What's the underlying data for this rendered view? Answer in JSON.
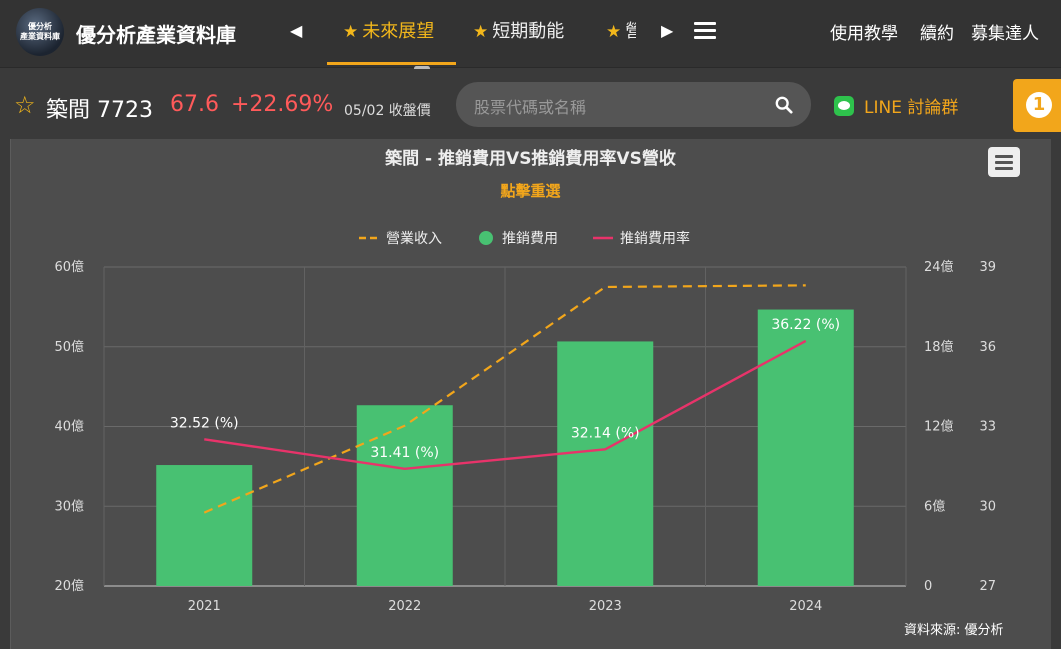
{
  "header": {
    "logo_text": "優分析\n產業資料庫",
    "brand": "優分析產業資料庫",
    "tabs": [
      {
        "label": "未來展望",
        "active": true
      },
      {
        "label": "短期動能",
        "active": false
      },
      {
        "label": "營運",
        "active": false
      }
    ],
    "right_links": [
      "使用教學",
      "續約",
      "募集達人"
    ]
  },
  "stock": {
    "name": "築間 7723",
    "price": "67.6",
    "change": "+22.69%",
    "date": "05/02 收盤價",
    "search_placeholder": "股票代碼或名稱",
    "line_label": "LINE 討論群",
    "notification_count": "1"
  },
  "colors": {
    "accent": "#f2a61b",
    "price_up": "#ff5a5a",
    "bar": "#48c172",
    "rate_line": "#e8336a",
    "revenue_line": "#f2a61b"
  },
  "chart_data": {
    "type": "bar",
    "title": "築間 - 推銷費用VS推銷費用率VS營收",
    "subtitle": "點擊重選",
    "categories": [
      "2021",
      "2022",
      "2023",
      "2024"
    ],
    "legend_position": "top-center",
    "grid": true,
    "series": [
      {
        "name": "營業收入",
        "type": "line",
        "style": "dashed",
        "axis": "left",
        "values": [
          29.2,
          40.1,
          57.5,
          57.7
        ]
      },
      {
        "name": "推銷費用",
        "type": "bar",
        "axis": "right1",
        "values": [
          9.1,
          13.6,
          18.4,
          20.8
        ]
      },
      {
        "name": "推銷費用率",
        "type": "line",
        "axis": "right2",
        "values": [
          32.52,
          31.41,
          32.14,
          36.22
        ],
        "labels": [
          "32.52 (%)",
          "31.41 (%)",
          "32.14 (%)",
          "36.22 (%)"
        ]
      }
    ],
    "axes": {
      "left": {
        "ticks": [
          "20億",
          "30億",
          "40億",
          "50億",
          "60億"
        ],
        "range": [
          20,
          60
        ]
      },
      "right1": {
        "ticks": [
          "0",
          "6億",
          "12億",
          "18億",
          "24億"
        ],
        "range": [
          0,
          24
        ]
      },
      "right2": {
        "ticks": [
          "27",
          "30",
          "33",
          "36",
          "39"
        ],
        "range": [
          27,
          39
        ]
      }
    },
    "source": "資料來源: 優分析"
  }
}
